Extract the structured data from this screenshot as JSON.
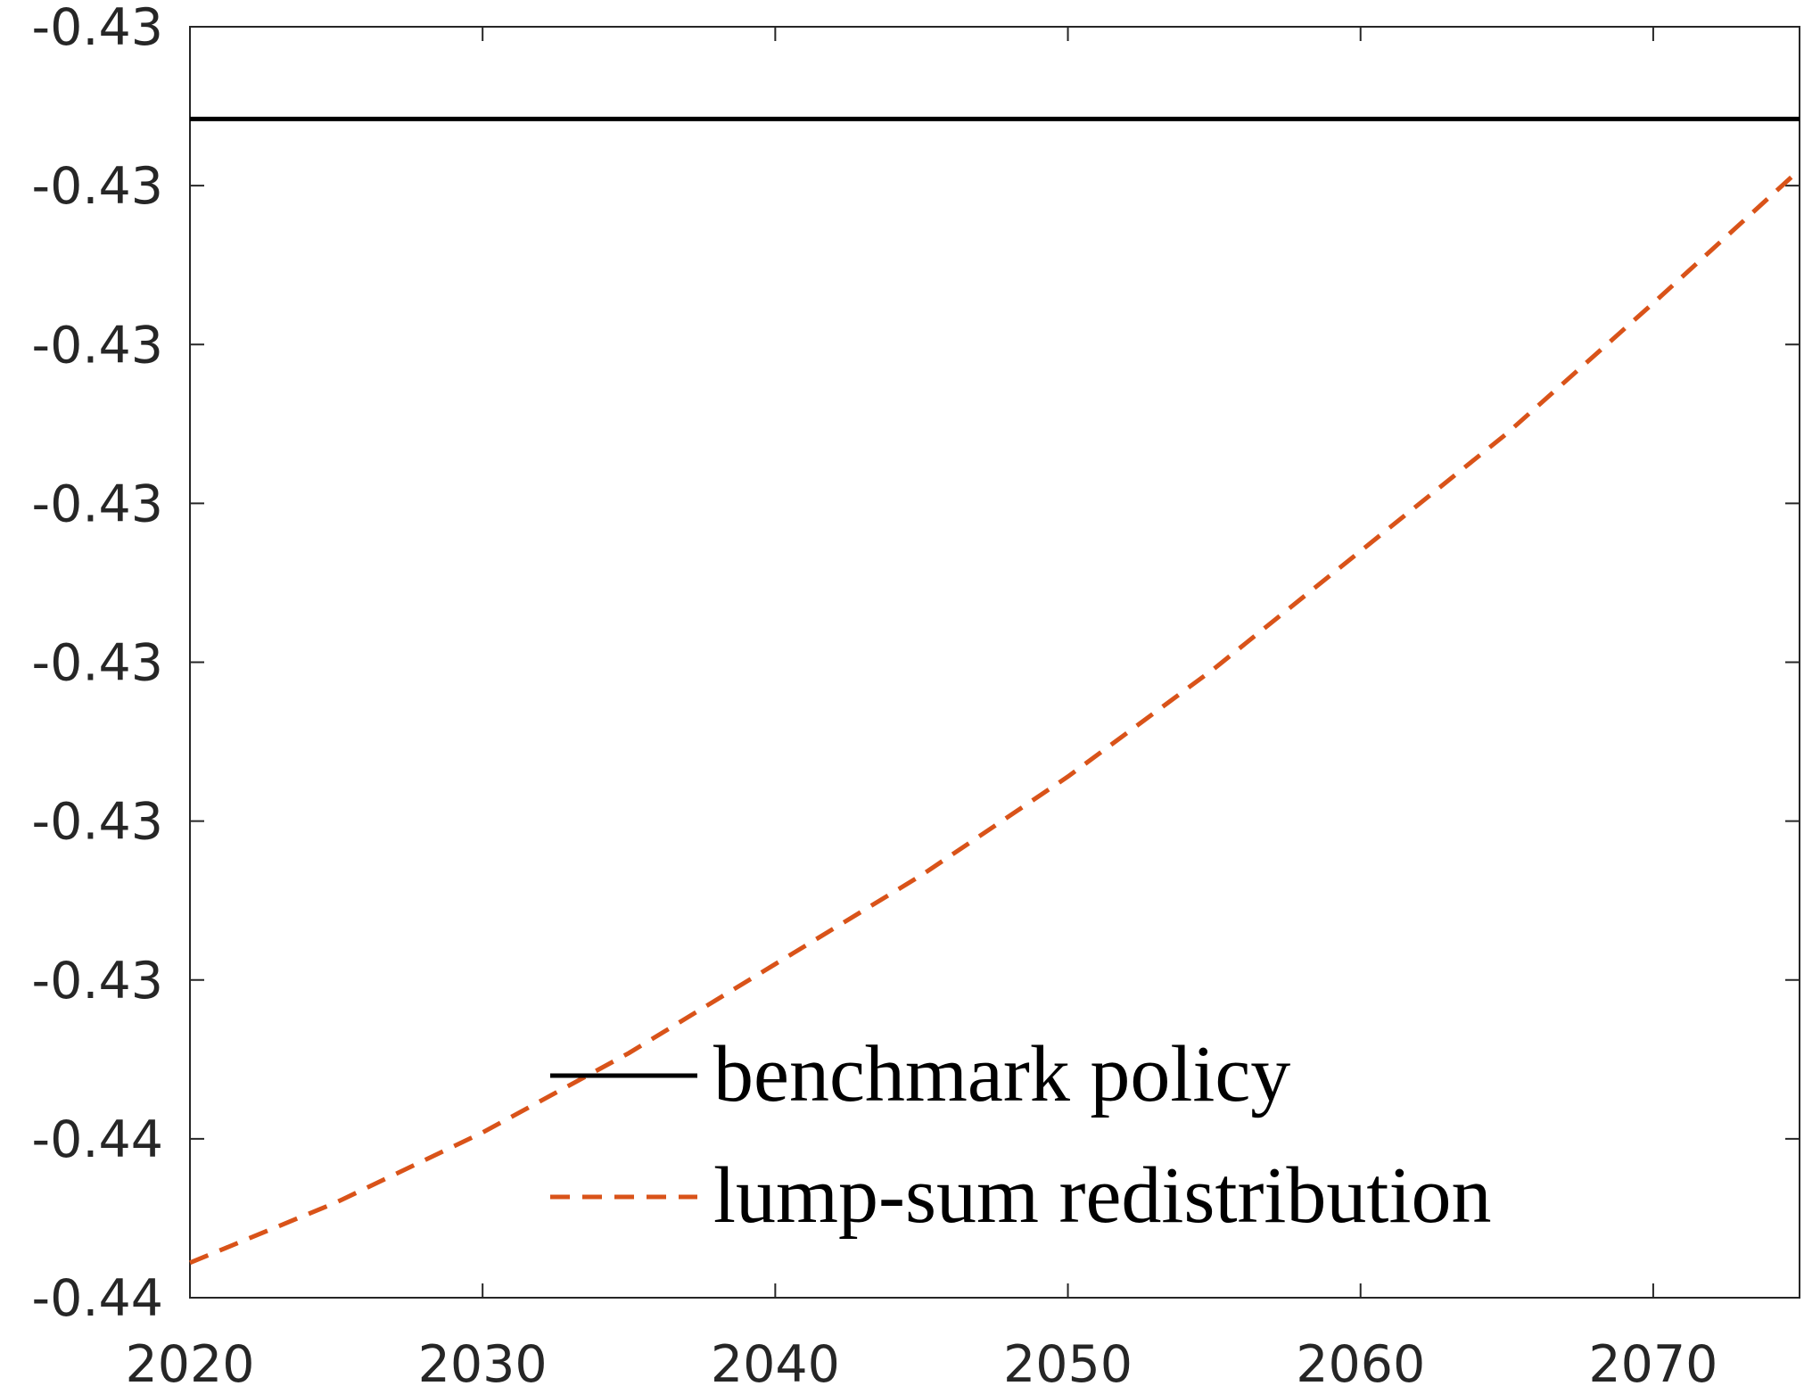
{
  "chart_data": {
    "type": "line",
    "x": [
      2020,
      2025,
      2030,
      2035,
      2040,
      2045,
      2050,
      2055,
      2060,
      2065,
      2070,
      2075
    ],
    "series": [
      {
        "name": "benchmark policy",
        "color": "#000000",
        "dash": false,
        "values": [
          -0.43179,
          -0.43179,
          -0.43179,
          -0.43179,
          -0.43179,
          -0.43179,
          -0.43179,
          -0.43179,
          -0.43179,
          -0.43179,
          -0.43179,
          -0.43179
        ]
      },
      {
        "name": "lump-sum redistribution",
        "color": "#d95319",
        "dash": true,
        "values": [
          -0.43539,
          -0.4352,
          -0.43498,
          -0.43473,
          -0.43445,
          -0.43417,
          -0.43386,
          -0.43352,
          -0.43315,
          -0.43278,
          -0.43237,
          -0.43195
        ]
      }
    ],
    "xlim": [
      2020,
      2075
    ],
    "xticks": [
      2020,
      2030,
      2040,
      2050,
      2060,
      2070
    ],
    "ylim": [
      -0.4355,
      -0.4315
    ],
    "yticks": [
      {
        "value": -0.4355,
        "label": "-0.44"
      },
      {
        "value": -0.435,
        "label": "-0.44"
      },
      {
        "value": -0.4345,
        "label": "-0.43"
      },
      {
        "value": -0.434,
        "label": "-0.43"
      },
      {
        "value": -0.4335,
        "label": "-0.43"
      },
      {
        "value": -0.433,
        "label": "-0.43"
      },
      {
        "value": -0.4325,
        "label": "-0.43"
      },
      {
        "value": -0.432,
        "label": "-0.43"
      },
      {
        "value": -0.4315,
        "label": "-0.43"
      }
    ],
    "grid": false,
    "legend": "lower right"
  }
}
